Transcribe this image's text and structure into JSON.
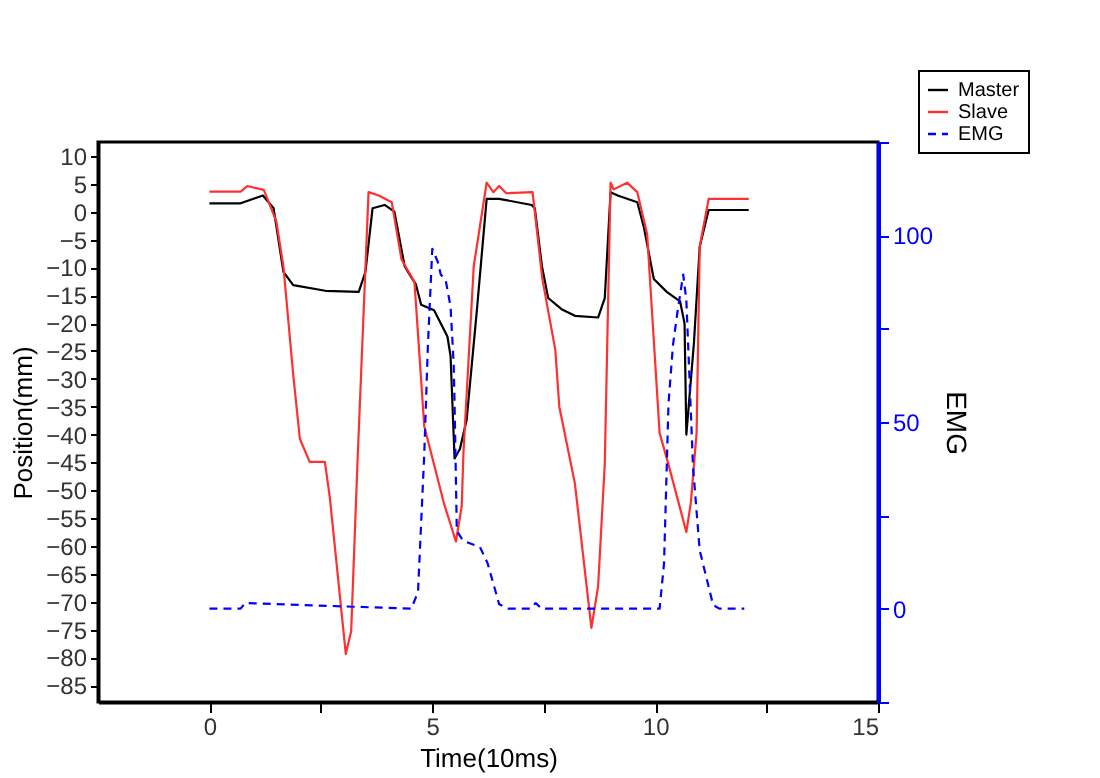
{
  "chart_data": {
    "type": "line",
    "xlabel": "Time(10ms)",
    "ylabel": "Position(mm)",
    "y2label": "EMG",
    "legend": "top right",
    "grid": false,
    "marker": "none",
    "xlim": [
      -2.5,
      15
    ],
    "xticks": [
      0,
      {
        "value": 2.5,
        "label": null
      },
      5,
      {
        "value": 7.5,
        "label": null
      },
      10,
      {
        "value": 12.5,
        "label": null
      },
      15
    ],
    "ylim": [
      -88,
      12.5
    ],
    "yticks": [
      -85,
      -80,
      -75,
      -70,
      -65,
      -60,
      -55,
      -50,
      -45,
      -40,
      -35,
      -30,
      -25,
      -20,
      -15,
      -10,
      -5,
      0,
      5,
      10
    ],
    "y2lim": [
      -25,
      125
    ],
    "y2ticks": [
      {
        "value": -25,
        "label": null
      },
      0,
      {
        "value": 25,
        "label": null
      },
      50,
      {
        "value": 75,
        "label": null
      },
      100,
      {
        "value": 125,
        "label": null
      }
    ],
    "series": [
      {
        "name": "Master",
        "color": "#000000",
        "line_style": "solid",
        "x": [
          0,
          0.7,
          1.2,
          1.44,
          1.66,
          1.88,
          2.6,
          3.35,
          3.5,
          3.66,
          3.93,
          4.15,
          4.38,
          4.53,
          4.63,
          4.75,
          5.04,
          5.34,
          5.41,
          5.5,
          5.62,
          5.77,
          6.0,
          6.22,
          6.5,
          7.23,
          7.3,
          7.46,
          7.6,
          7.9,
          8.2,
          8.72,
          8.87,
          9.0,
          9.16,
          9.6,
          9.75,
          9.97,
          10.26,
          10.56,
          10.66,
          10.7,
          10.87,
          11.0,
          11.2,
          12.1
        ],
        "values": [
          1.5,
          1.5,
          2.9,
          0.6,
          -10.8,
          -13.2,
          -14.2,
          -14.4,
          -10.8,
          0.6,
          1.2,
          0,
          -9.8,
          -11.8,
          -13,
          -16.7,
          -17.7,
          -22.4,
          -25.9,
          -44.3,
          -42.6,
          -37.4,
          -17.7,
          2.3,
          2.3,
          1.2,
          0.6,
          -9.8,
          -15.5,
          -17.5,
          -18.7,
          -19,
          -15.5,
          3.5,
          2.9,
          1.7,
          -2.9,
          -12.1,
          -14.4,
          -16.1,
          -20.1,
          -40,
          -23.6,
          -6.3,
          0.3,
          0.3
        ]
      },
      {
        "name": "Slave",
        "color": "#ff3030",
        "line_style": "solid",
        "x": [
          0,
          0.7,
          0.85,
          1.22,
          1.5,
          1.66,
          1.88,
          2.03,
          2.25,
          2.59,
          2.7,
          3.06,
          3.18,
          3.32,
          3.57,
          3.8,
          4.09,
          4.31,
          4.6,
          4.82,
          5.26,
          5.53,
          5.66,
          5.7,
          5.93,
          6.22,
          6.37,
          6.5,
          6.66,
          7.25,
          7.47,
          7.76,
          7.85,
          8.2,
          8.57,
          8.72,
          8.87,
          9.0,
          9.07,
          9.37,
          9.6,
          9.82,
          10.1,
          10.3,
          10.7,
          10.8,
          10.93,
          11.0,
          11.2,
          12.1
        ],
        "values": [
          3.6,
          3.6,
          4.6,
          3.9,
          -1.7,
          -9.8,
          -29.3,
          -40.8,
          -44.9,
          -44.9,
          -51.2,
          -79.4,
          -75.3,
          -45.3,
          3.5,
          2.9,
          1.7,
          -8.6,
          -12.6,
          -38.5,
          -52.3,
          -59.2,
          -52.9,
          -43.1,
          -9.8,
          5.2,
          3.5,
          4.6,
          3.3,
          3.5,
          -12.1,
          -24.8,
          -35,
          -48.8,
          -74.7,
          -67.3,
          -45.3,
          5.2,
          4,
          5.2,
          3.5,
          -4,
          -39.7,
          -45.4,
          -57.5,
          -52.3,
          -39.7,
          -6.3,
          2.3,
          2.3
        ]
      },
      {
        "name": "EMG",
        "color": "#0000ff",
        "line_style": "dashed",
        "axis": "y2",
        "x": [
          0,
          0.7,
          0.8,
          4.53,
          4.68,
          4.82,
          4.9,
          5.0,
          5.12,
          5.19,
          5.3,
          5.41,
          5.48,
          5.5,
          5.55,
          5.69,
          6.07,
          6.24,
          6.5,
          6.7,
          7.2,
          7.32,
          7.45,
          10.1,
          10.2,
          10.3,
          10.4,
          10.5,
          10.63,
          10.7,
          10.77,
          10.85,
          11.0,
          11.3,
          11.44,
          12.0
        ],
        "values": [
          0,
          0,
          1.5,
          0,
          4.5,
          41.4,
          70,
          96.4,
          93,
          89.5,
          88,
          80.9,
          65.5,
          55,
          20.8,
          18.2,
          16.5,
          12.2,
          1.2,
          0,
          0,
          1.5,
          0,
          0,
          12.2,
          55,
          70.6,
          79.4,
          89.5,
          82.6,
          62,
          38,
          15.6,
          1,
          0,
          0
        ]
      }
    ]
  }
}
